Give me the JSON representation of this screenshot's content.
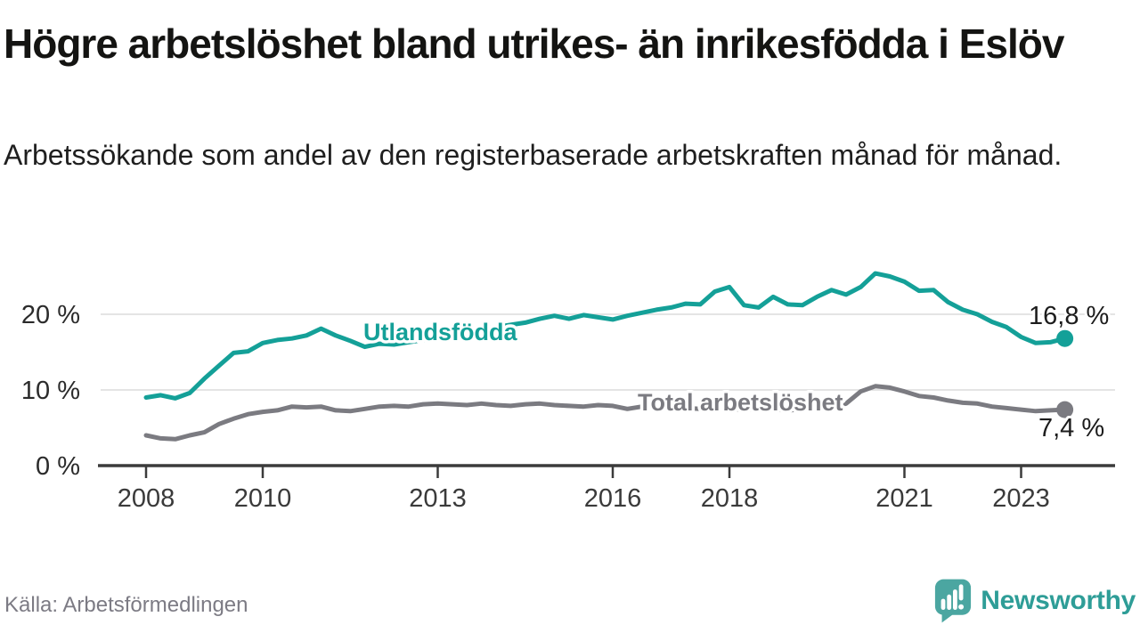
{
  "header": {
    "title": "Högre arbetslöshet bland utrikes- än inrikesfödda i Eslöv",
    "subtitle": "Arbetssökande som andel av den registerbaserade arbetskraften månad för månad."
  },
  "footer": {
    "source": "Källa: Arbetsförmedlingen",
    "brand": "Newsworthy",
    "brand_icon": "newsworthy-speech-bubble-bar-chart-icon"
  },
  "colors": {
    "utlandsfodda_teal": "#14a098",
    "total_gray": "#7b7b81",
    "grid": "#dcdcdc",
    "axis": "#3b3b3b",
    "end_label_text": "#1c1c1c",
    "brand_icon_teal": "#4ba6a1",
    "brand_text_teal": "#2e9d97",
    "source_gray": "#7c7b84"
  },
  "chart_data": {
    "type": "line",
    "title": "",
    "xlabel": "",
    "ylabel": "",
    "x_range": [
      2007.5,
      2024.3
    ],
    "ylim": [
      0,
      27
    ],
    "grid": "horizontal",
    "legend": "inline-labels-on-lines",
    "x": [
      2008,
      2008.25,
      2008.5,
      2008.75,
      2009,
      2009.25,
      2009.5,
      2009.75,
      2010,
      2010.25,
      2010.5,
      2010.75,
      2011,
      2011.25,
      2011.5,
      2011.75,
      2012,
      2012.25,
      2012.5,
      2012.75,
      2013,
      2013.25,
      2013.5,
      2013.75,
      2014,
      2014.25,
      2014.5,
      2014.75,
      2015,
      2015.25,
      2015.5,
      2015.75,
      2016,
      2016.25,
      2016.5,
      2016.75,
      2017,
      2017.25,
      2017.5,
      2017.75,
      2018,
      2018.25,
      2018.5,
      2018.75,
      2019,
      2019.25,
      2019.5,
      2019.75,
      2020,
      2020.25,
      2020.5,
      2020.75,
      2021,
      2021.25,
      2021.5,
      2021.75,
      2022,
      2022.25,
      2022.5,
      2022.75,
      2023,
      2023.25,
      2023.5,
      2023.75
    ],
    "x_ticks": [
      {
        "value": 2008,
        "label": "2008"
      },
      {
        "value": 2010,
        "label": "2010"
      },
      {
        "value": 2013,
        "label": "2013"
      },
      {
        "value": 2016,
        "label": "2016"
      },
      {
        "value": 2018,
        "label": "2018"
      },
      {
        "value": 2021,
        "label": "2021"
      },
      {
        "value": 2023,
        "label": "2023"
      }
    ],
    "y_ticks": [
      {
        "value": 0,
        "label": "0 %"
      },
      {
        "value": 10,
        "label": "10 %"
      },
      {
        "value": 20,
        "label": "20 %"
      }
    ],
    "series": [
      {
        "id": "utlandsfodda",
        "name": "Utlandsfödda",
        "color_key": "utlandsfodda_teal",
        "end_label": "16,8 %",
        "end_value": 16.8,
        "values": [
          9.0,
          9.3,
          8.9,
          9.6,
          11.5,
          13.2,
          14.9,
          15.1,
          16.2,
          16.6,
          16.8,
          17.2,
          18.1,
          17.2,
          16.5,
          15.7,
          16.1,
          16.0,
          16.3,
          16.6,
          17.0,
          17.3,
          17.6,
          18.0,
          18.3,
          18.6,
          18.9,
          19.4,
          19.8,
          19.4,
          19.9,
          19.6,
          19.3,
          19.8,
          20.2,
          20.6,
          20.9,
          21.4,
          21.3,
          23.0,
          23.6,
          21.2,
          20.9,
          22.3,
          21.3,
          21.2,
          22.3,
          23.2,
          22.6,
          23.6,
          25.4,
          25.0,
          24.3,
          23.1,
          23.2,
          21.6,
          20.6,
          20.0,
          19.0,
          18.3,
          17.0,
          16.2,
          16.3,
          16.8
        ]
      },
      {
        "id": "total",
        "name": "Total arbetslöshet",
        "color_key": "total_gray",
        "end_label": "7,4 %",
        "end_value": 7.4,
        "values": [
          4.0,
          3.6,
          3.5,
          4.0,
          4.4,
          5.5,
          6.2,
          6.8,
          7.1,
          7.3,
          7.8,
          7.7,
          7.8,
          7.3,
          7.2,
          7.5,
          7.8,
          7.9,
          7.8,
          8.1,
          8.2,
          8.1,
          8.0,
          8.2,
          8.0,
          7.9,
          8.1,
          8.2,
          8.0,
          7.9,
          7.8,
          8.0,
          7.9,
          7.5,
          7.8,
          7.7,
          7.7,
          7.6,
          7.5,
          7.6,
          7.5,
          7.4,
          7.5,
          7.4,
          7.3,
          7.4,
          7.5,
          7.7,
          8.2,
          9.8,
          10.5,
          10.3,
          9.8,
          9.2,
          9.0,
          8.6,
          8.3,
          8.2,
          7.8,
          7.6,
          7.4,
          7.2,
          7.3,
          7.4
        ]
      }
    ]
  }
}
